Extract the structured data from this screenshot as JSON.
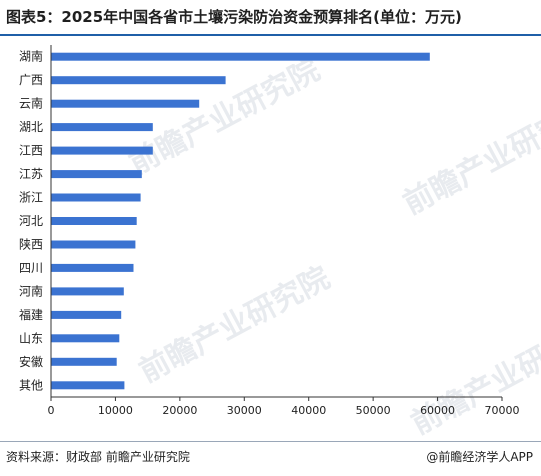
{
  "header": {
    "title": "图表5：2025年中国各省市土壤污染防治资金预算排名(单位：万元)"
  },
  "footer": {
    "source": "资料来源：财政部 前瞻产业研究院",
    "credit": "@前瞻经济学人APP"
  },
  "watermark": {
    "text": "前瞻产业研究院"
  },
  "colors": {
    "bar": "#3b73d1",
    "axis": "#333333",
    "title_rule": "#1f5fa8"
  },
  "chart_data": {
    "type": "bar",
    "orientation": "horizontal",
    "categories": [
      "湖南",
      "广西",
      "云南",
      "湖北",
      "江西",
      "江苏",
      "浙江",
      "河北",
      "陕西",
      "四川",
      "河南",
      "福建",
      "山东",
      "安徽",
      "其他"
    ],
    "values": [
      58800,
      27100,
      23000,
      15800,
      15800,
      14100,
      13900,
      13300,
      13100,
      12800,
      11300,
      10900,
      10600,
      10200,
      11400
    ],
    "xlim": [
      0,
      70000
    ],
    "xticks": [
      "0",
      "10000",
      "20000",
      "30000",
      "40000",
      "50000",
      "60000",
      "70000"
    ],
    "xlabel": "",
    "ylabel": "",
    "grid": false,
    "legend": "none"
  }
}
